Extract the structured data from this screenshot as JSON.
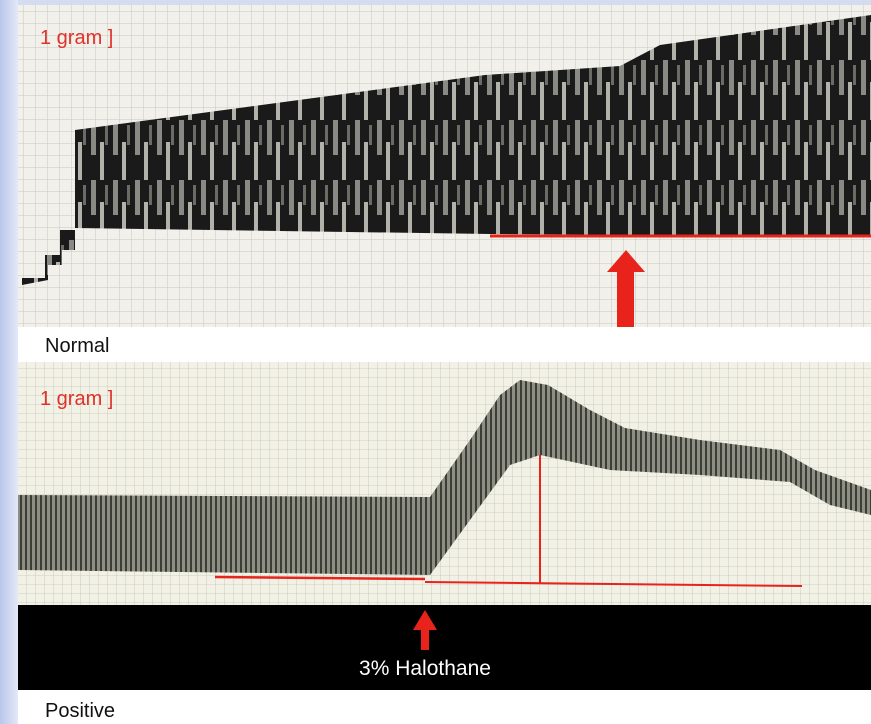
{
  "panels": [
    {
      "scale_label": "1 gram ]",
      "caption": "Normal"
    },
    {
      "scale_label": "1 gram ]",
      "marker_label": "3% Halothane",
      "caption": "Positive"
    }
  ]
}
